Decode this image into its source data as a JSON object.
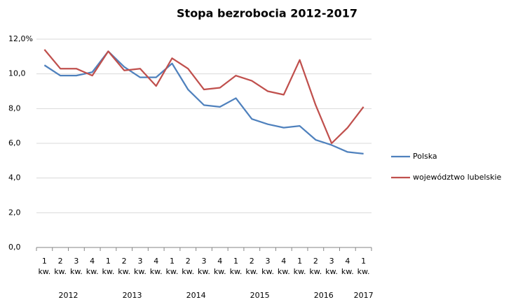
{
  "chart_data": {
    "type": "line",
    "title": "Stopa bezrobocia 2012-2017",
    "categories": [
      "1 kw.",
      "2 kw.",
      "3 kw.",
      "4 kw.",
      "1 kw.",
      "2 kw.",
      "3 kw.",
      "4 kw.",
      "1 kw.",
      "2 kw.",
      "3 kw.",
      "4 kw.",
      "1 kw.",
      "2 kw.",
      "3 kw.",
      "4 kw.",
      "1 kw.",
      "2 kw.",
      "3 kw.",
      "4 kw.",
      "1 kw."
    ],
    "groups": [
      {
        "label": "2012",
        "count": 4
      },
      {
        "label": "2013",
        "count": 4
      },
      {
        "label": "2014",
        "count": 4
      },
      {
        "label": "2015",
        "count": 4
      },
      {
        "label": "2016",
        "count": 4
      },
      {
        "label": "2017",
        "count": 1
      }
    ],
    "series": [
      {
        "name": "Polska",
        "color": "#4f81bd",
        "values": [
          10.5,
          9.9,
          9.9,
          10.1,
          11.3,
          10.4,
          9.8,
          9.8,
          10.6,
          9.1,
          8.2,
          8.1,
          8.6,
          7.4,
          7.1,
          6.9,
          7.0,
          6.2,
          5.9,
          5.5,
          5.4
        ]
      },
      {
        "name": "województwo lubelskie",
        "color": "#c0504d",
        "values": [
          11.4,
          10.3,
          10.3,
          9.9,
          11.3,
          10.2,
          10.3,
          9.3,
          10.9,
          10.3,
          9.1,
          9.2,
          9.9,
          9.6,
          9.0,
          8.8,
          10.8,
          8.2,
          6.0,
          6.9,
          8.1
        ]
      }
    ],
    "ylim": [
      0,
      12
    ],
    "yticks": [
      {
        "value": 0,
        "label": "0,0"
      },
      {
        "value": 2,
        "label": "2,0"
      },
      {
        "value": 4,
        "label": "4,0"
      },
      {
        "value": 6,
        "label": "6,0"
      },
      {
        "value": 8,
        "label": "8,0"
      },
      {
        "value": 10,
        "label": "10,0"
      },
      {
        "value": 12,
        "label": "12,0%"
      }
    ],
    "grid": true,
    "legend": "right"
  }
}
